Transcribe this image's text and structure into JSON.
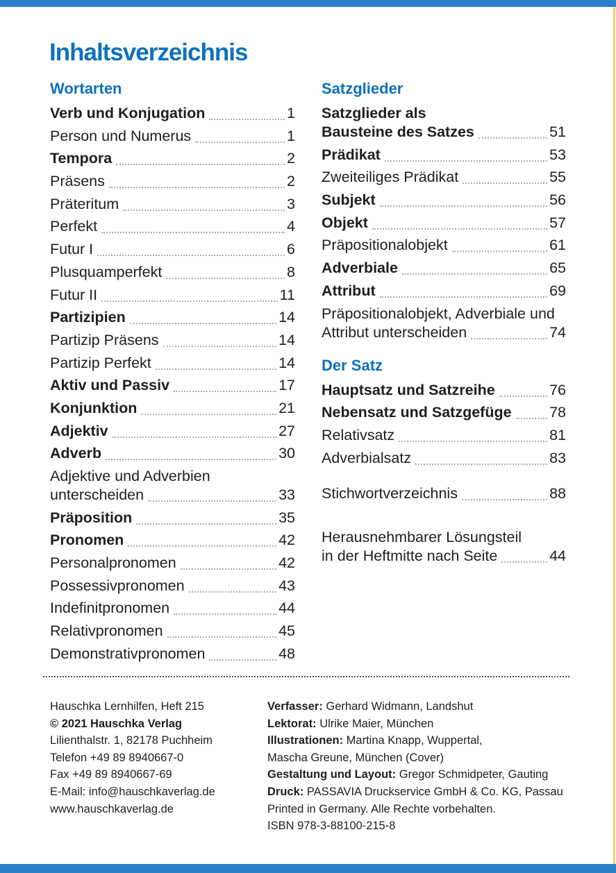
{
  "page": {
    "title": "Inhaltsverzeichnis"
  },
  "colors": {
    "accent": "#0e71bd",
    "bar_blue": "#2a80c8",
    "edge_yellow": "#f2d26a"
  },
  "toc": {
    "left_column": {
      "sections": [
        {
          "heading": "Wortarten",
          "entries": [
            {
              "label": "Verb und Konjugation",
              "page": "1",
              "bold": true
            },
            {
              "label": "Person und Numerus",
              "page": "1"
            },
            {
              "label": "Tempora",
              "page": "2",
              "bold": true
            },
            {
              "label": "Präsens",
              "page": "2"
            },
            {
              "label": "Präteritum",
              "page": "3"
            },
            {
              "label": "Perfekt",
              "page": "4"
            },
            {
              "label": "Futur I",
              "page": "6"
            },
            {
              "label": "Plusquamperfekt",
              "page": "8"
            },
            {
              "label": "Futur II",
              "page": "11"
            },
            {
              "label": "Partizipien",
              "page": "14",
              "bold": true
            },
            {
              "label": "Partizip Präsens",
              "page": "14"
            },
            {
              "label": "Partizip Perfekt",
              "page": "14"
            },
            {
              "label": "Aktiv und Passiv",
              "page": "17",
              "bold": true
            },
            {
              "label": "Konjunktion",
              "page": "21",
              "bold": true
            },
            {
              "label": "Adjektiv",
              "page": "27",
              "bold": true
            },
            {
              "label": "Adverb",
              "page": "30",
              "bold": true
            },
            {
              "label": "Adjektive und Adverbien",
              "label2": "unterscheiden",
              "page": "33"
            },
            {
              "label": "Präposition",
              "page": "35",
              "bold": true
            },
            {
              "label": "Pronomen",
              "page": "42",
              "bold": true
            },
            {
              "label": "Personalpronomen",
              "page": "42"
            },
            {
              "label": "Possessivpronomen",
              "page": "43"
            },
            {
              "label": "Indefinitpronomen",
              "page": "44"
            },
            {
              "label": "Relativpronomen",
              "page": "45"
            },
            {
              "label": "Demonstrativpronomen",
              "page": "48"
            }
          ]
        }
      ]
    },
    "right_column": {
      "sections": [
        {
          "heading": "Satzglieder",
          "entries": [
            {
              "label": "Satzglieder als",
              "label2": "Bausteine des Satzes",
              "page": "51",
              "bold": true
            },
            {
              "label": "Prädikat",
              "page": "53",
              "bold": true
            },
            {
              "label": "Zweiteiliges Prädikat",
              "page": "55"
            },
            {
              "label": "Subjekt",
              "page": "56",
              "bold": true
            },
            {
              "label": "Objekt",
              "page": "57",
              "bold": true
            },
            {
              "label": "Präpositionalobjekt",
              "page": "61"
            },
            {
              "label": "Adverbiale",
              "page": "65",
              "bold": true
            },
            {
              "label": "Attribut",
              "page": "69",
              "bold": true
            },
            {
              "label": "Präpositionalobjekt, Adverbiale und",
              "label2": "Attribut unterscheiden",
              "page": "74"
            }
          ]
        },
        {
          "heading": "Der Satz",
          "entries": [
            {
              "label": "Hauptsatz und Satzreihe",
              "page": "76",
              "bold": true
            },
            {
              "label": "Nebensatz und Satzgefüge",
              "page": "78",
              "bold": true
            },
            {
              "label": "Relativsatz",
              "page": "81"
            },
            {
              "label": "Adverbialsatz",
              "page": "83"
            }
          ]
        }
      ],
      "extras": [
        {
          "label": "Stichwortverzeichnis",
          "page": "88"
        },
        {
          "label": "Herausnehmbarer Lösungsteil",
          "label2": "in der Heftmitte nach Seite",
          "page": "44"
        }
      ]
    }
  },
  "footer": {
    "left_lines": [
      {
        "text": "Hauschka Lernhilfen, Heft 215"
      },
      {
        "text": "© 2021 Hauschka Verlag",
        "bold": true
      },
      {
        "text": "Lilienthalstr. 1, 82178 Puchheim"
      },
      {
        "text": "Telefon +49 89 8940667-0"
      },
      {
        "text": "Fax +49 89 8940667-69"
      },
      {
        "text": "E-Mail: info@hauschkaverlag.de"
      },
      {
        "text": "www.hauschkaverlag.de"
      }
    ],
    "right_lines": [
      {
        "label": "Verfasser:",
        "text": "Gerhard Widmann, Landshut"
      },
      {
        "label": "Lektorat:",
        "text": "Ulrike Maier, München"
      },
      {
        "label": "Illustrationen:",
        "text": "Martina Knapp, Wuppertal,"
      },
      {
        "text": "Mascha Greune, München (Cover)"
      },
      {
        "label": "Gestaltung und Layout:",
        "text": "Gregor Schmidpeter, Gauting"
      },
      {
        "label": "Druck:",
        "text": "PASSAVIA Druckservice GmbH & Co. KG, Passau"
      },
      {
        "text": "Printed in Germany. Alle Rechte vorbehalten."
      },
      {
        "text": "ISBN 978-3-88100-215-8"
      }
    ]
  }
}
